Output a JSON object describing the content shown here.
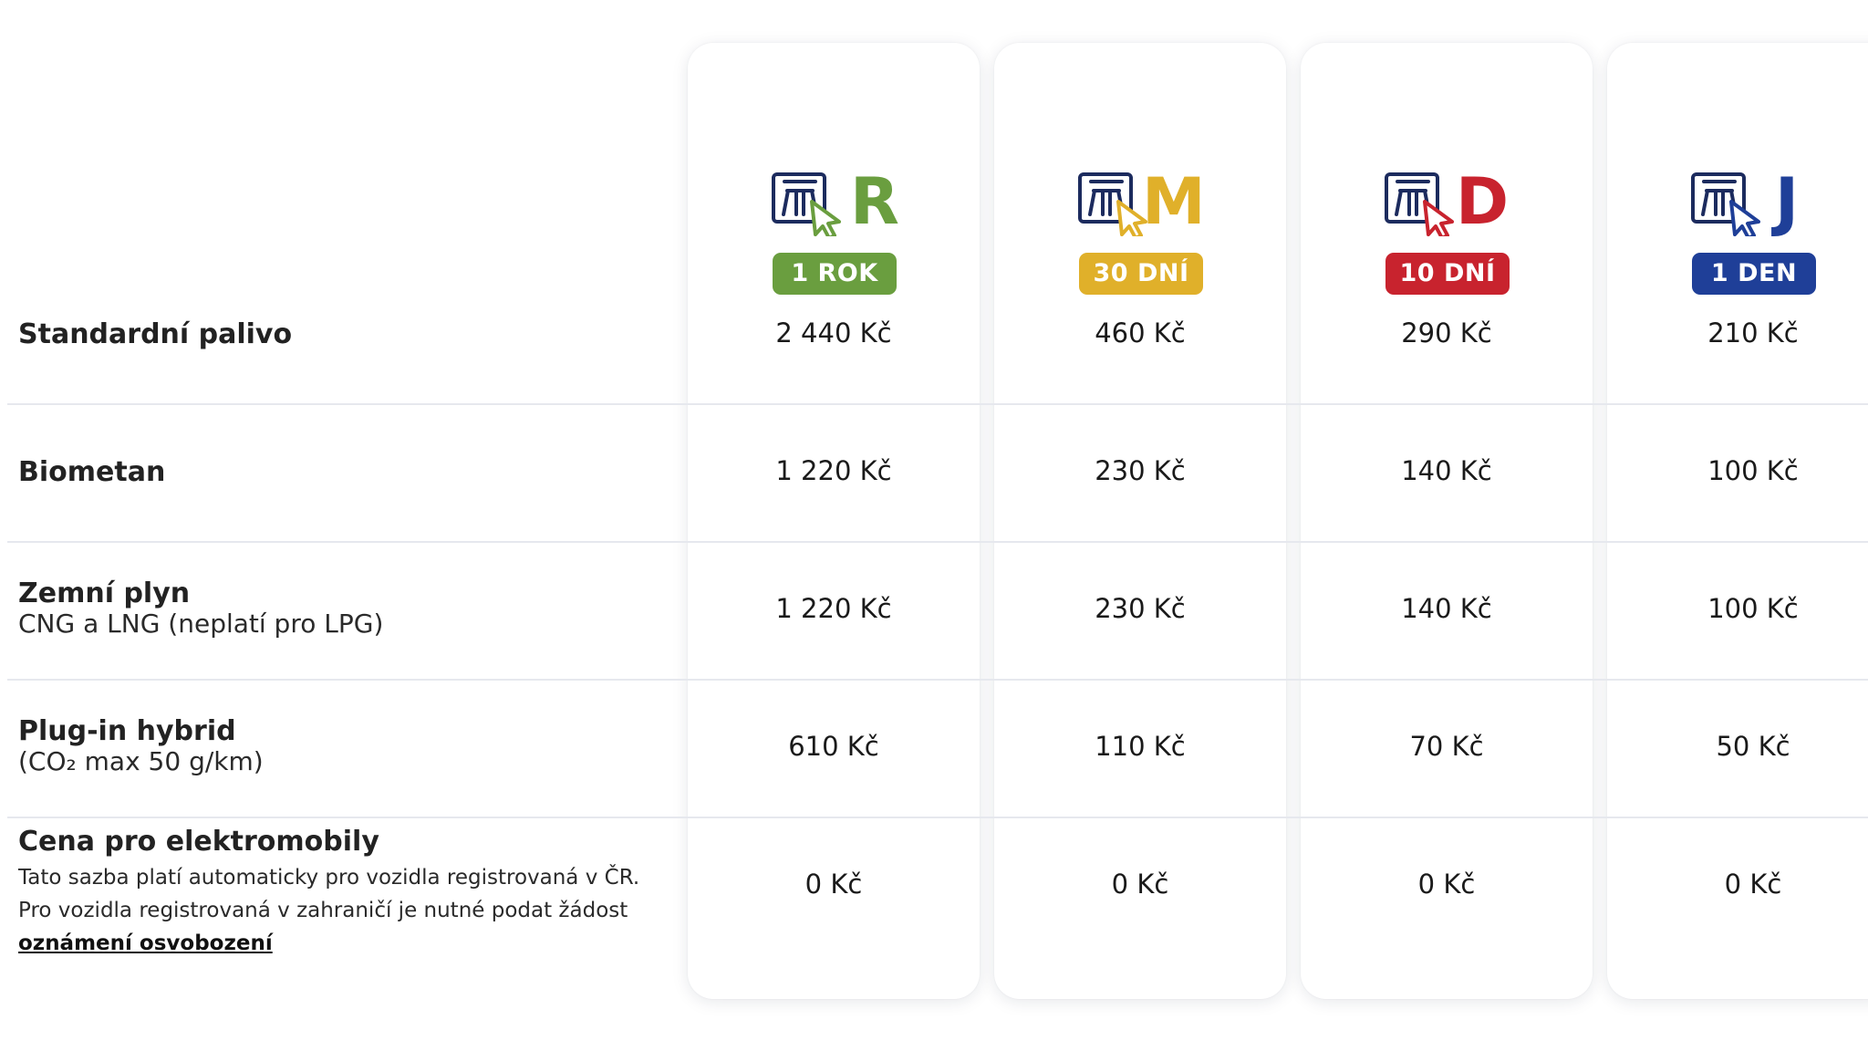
{
  "vignettes": [
    {
      "letter": "R",
      "badge": "1 ROK",
      "color": "#6a9e3f"
    },
    {
      "letter": "M",
      "badge": "30 DNÍ",
      "color": "#e0b02a"
    },
    {
      "letter": "D",
      "badge": "10 DNÍ",
      "color": "#c8232e"
    },
    {
      "letter": "J",
      "badge": "1 DEN",
      "color": "#1f3f98"
    }
  ],
  "icon_outline_color": "#1c2b5e",
  "rows": [
    {
      "title": "Standardní palivo",
      "prices": [
        "2 440 Kč",
        "460 Kč",
        "290 Kč",
        "210 Kč"
      ]
    },
    {
      "title": "Biometan",
      "prices": [
        "1 220 Kč",
        "230 Kč",
        "140 Kč",
        "100 Kč"
      ]
    },
    {
      "title": "Zemní plyn",
      "subtitle": "CNG a LNG (neplatí pro LPG)",
      "prices": [
        "1 220 Kč",
        "230 Kč",
        "140 Kč",
        "100 Kč"
      ]
    },
    {
      "title": "Plug-in hybrid",
      "subtitle": "(CO₂ max 50 g/km)",
      "prices": [
        "610 Kč",
        "110 Kč",
        "70 Kč",
        "50 Kč"
      ]
    },
    {
      "title": "Cena pro elektromobily",
      "description": "Tato sazba platí automaticky pro vozidla registrovaná v ČR. Pro vozidla registrovaná v zahraničí je nutné podat žádost",
      "link": "oznámení osvobození",
      "prices": [
        "0 Kč",
        "0 Kč",
        "0 Kč",
        "0 Kč"
      ]
    }
  ]
}
